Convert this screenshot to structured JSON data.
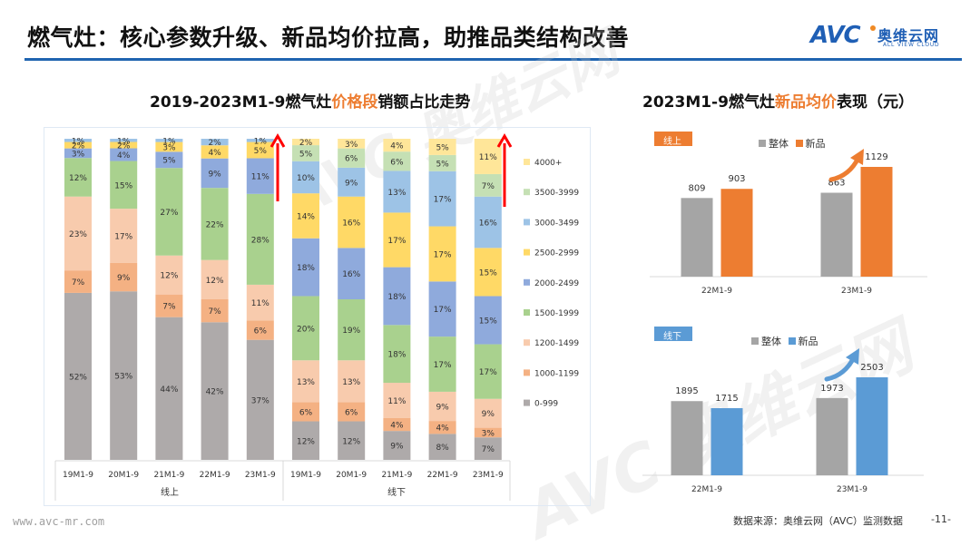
{
  "page": {
    "title": "燃气灶：核心参数升级、新品均价拉高，助推品类结构改善",
    "logo_text": "AVC",
    "logo_cn": "奥维云网",
    "logo_en": "ALL VIEW CLOUD",
    "footer_url": "www.avc-mr.com",
    "footer_source": "数据来源：奥维云网（AVC）监测数据",
    "page_number": "-11-"
  },
  "chart_data": [
    {
      "type": "bar",
      "stacked": true,
      "percent": true,
      "title_parts": [
        "2019-2023M1-9燃气灶",
        "价格段",
        "销额占比走势"
      ],
      "group_labels": [
        "线上",
        "线下"
      ],
      "categories": [
        "19M1-9",
        "20M1-9",
        "21M1-9",
        "22M1-9",
        "23M1-9",
        "19M1-9",
        "20M1-9",
        "21M1-9",
        "22M1-9",
        "23M1-9"
      ],
      "legend_position": "right",
      "series": [
        {
          "name": "0-999",
          "color": "#aeaaaa",
          "values": [
            52,
            53,
            44,
            42,
            37,
            12,
            12,
            9,
            8,
            7
          ]
        },
        {
          "name": "1000-1199",
          "color": "#f4b183",
          "values": [
            7,
            9,
            7,
            7,
            6,
            6,
            6,
            4,
            4,
            3
          ]
        },
        {
          "name": "1200-1499",
          "color": "#f8cbad",
          "values": [
            23,
            17,
            12,
            12,
            11,
            13,
            13,
            11,
            9,
            9
          ]
        },
        {
          "name": "1500-1999",
          "color": "#a9d18e",
          "values": [
            12,
            15,
            27,
            22,
            28,
            20,
            19,
            18,
            17,
            17
          ]
        },
        {
          "name": "2000-2499",
          "color": "#8faadc",
          "values": [
            3,
            4,
            5,
            9,
            11,
            18,
            16,
            18,
            17,
            15
          ]
        },
        {
          "name": "2500-2999",
          "color": "#ffd966",
          "values": [
            2,
            2,
            3,
            4,
            5,
            14,
            16,
            17,
            17,
            15
          ]
        },
        {
          "name": "3000-3499",
          "color": "#9dc3e6",
          "values": [
            1,
            1,
            1,
            2,
            1,
            10,
            9,
            13,
            17,
            16
          ]
        },
        {
          "name": "3500-3999",
          "color": "#c5e0b4",
          "values": [
            0,
            0,
            0,
            0,
            0,
            5,
            6,
            6,
            5,
            7
          ]
        },
        {
          "name": "4000+",
          "color": "#ffe699",
          "values": [
            0,
            0,
            0,
            0,
            0,
            2,
            3,
            4,
            5,
            11
          ]
        }
      ],
      "labels_shown_threshold": 1,
      "trend_arrows": [
        "线上 23M1-9",
        "线下 23M1-9"
      ],
      "ylim": [
        0,
        100
      ]
    },
    {
      "type": "bar",
      "title_parts": [
        "2023M1-9燃气灶",
        "新品均价",
        "表现（元）"
      ],
      "panels": [
        {
          "tag": "线上",
          "tag_color": "#ed7d31",
          "categories": [
            "22M1-9",
            "23M1-9"
          ],
          "series": [
            {
              "name": "整体",
              "color": "#a5a5a5",
              "values": [
                809,
                863
              ]
            },
            {
              "name": "新品",
              "color": "#ed7d31",
              "values": [
                903,
                1129
              ]
            }
          ]
        },
        {
          "tag": "线下",
          "tag_color": "#5b9bd5",
          "categories": [
            "22M1-9",
            "23M1-9"
          ],
          "series": [
            {
              "name": "整体",
              "color": "#a5a5a5",
              "values": [
                1895,
                1973
              ]
            },
            {
              "name": "新品",
              "color": "#5b9bd5",
              "values": [
                1715,
                2503
              ]
            }
          ]
        }
      ],
      "ylabel": "元"
    }
  ]
}
